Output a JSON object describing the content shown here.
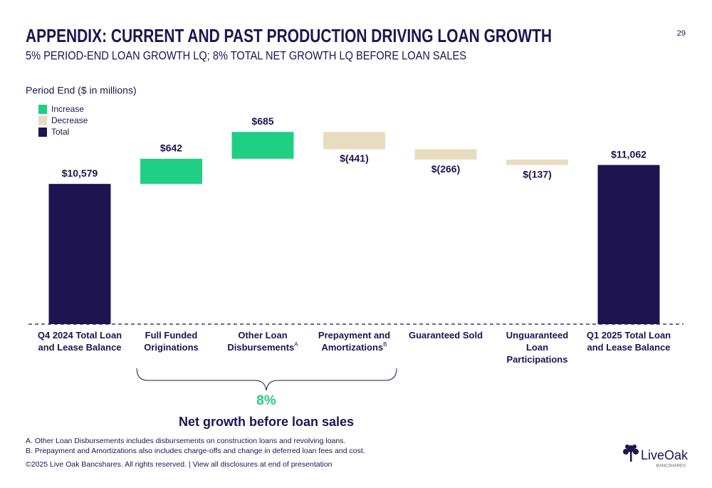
{
  "page_number": "29",
  "title": "APPENDIX: CURRENT AND PAST PRODUCTION DRIVING LOAN GROWTH",
  "subtitle": "5% PERIOD-END LOAN GROWTH LQ; 8% TOTAL NET GROWTH LQ BEFORE LOAN SALES",
  "chart_data": {
    "type": "waterfall",
    "axis_label": "Period End ($ in millions)",
    "categories": [
      "Q4 2024 Total Loan and Lease Balance",
      "Full Funded Originations",
      "Other Loan Disbursements",
      "Prepayment and Amortizations",
      "Guaranteed Sold",
      "Unguaranteed Loan Participations",
      "Q1 2025 Total Loan and Lease Balance"
    ],
    "category_notes": [
      null,
      null,
      "A",
      "B",
      null,
      null,
      null
    ],
    "values": [
      10579,
      642,
      685,
      -441,
      -266,
      -137,
      11062
    ],
    "value_labels": [
      "$10,579",
      "$642",
      "$685",
      "$(441)",
      "$(266)",
      "$(137)",
      "$11,062"
    ],
    "is_total": [
      true,
      false,
      false,
      false,
      false,
      false,
      true
    ],
    "legend": [
      {
        "name": "Increase",
        "color": "#1fcf84"
      },
      {
        "name": "Decrease",
        "color": "#e8dcc0"
      },
      {
        "name": "Total",
        "color": "#1e1450"
      }
    ],
    "ylim": [
      7000,
      12400
    ],
    "annotation": {
      "label": "8%",
      "caption": "Net growth before loan sales"
    }
  },
  "footnotes": [
    "A. Other Loan Disbursements includes disbursements on construction loans and revolving loans.",
    "B. Prepayment and Amortizations also includes charge-offs and change in deferred loan fees and cost."
  ],
  "copyright": "©2025 Live Oak Bancshares. All rights reserved.  |  View all disclosures at end of presentation",
  "logo": {
    "name": "LiveOak",
    "tagline": "BANCSHARES"
  }
}
